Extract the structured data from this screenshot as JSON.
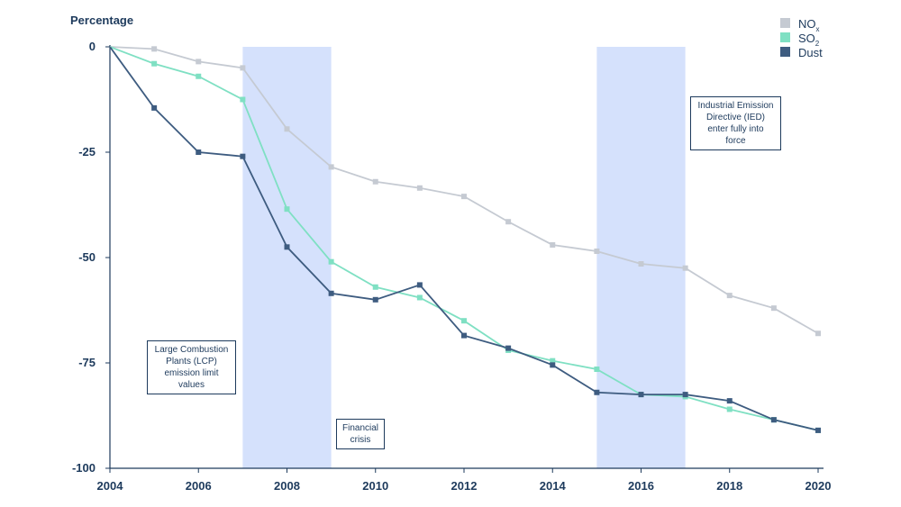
{
  "chart_data": {
    "type": "line",
    "ylabel": "Percentage",
    "x": [
      2004,
      2005,
      2006,
      2007,
      2008,
      2009,
      2010,
      2011,
      2012,
      2013,
      2014,
      2015,
      2016,
      2017,
      2018,
      2019,
      2020
    ],
    "xticks": [
      "2004",
      "2006",
      "2008",
      "2010",
      "2012",
      "2014",
      "2016",
      "2018",
      "2020"
    ],
    "xlim": [
      2004,
      2020
    ],
    "yticks": [
      "0",
      "-25",
      "-50",
      "-75",
      "-100"
    ],
    "ylim": [
      -100,
      0
    ],
    "series": [
      {
        "name": "NO",
        "sub": "x",
        "color": "#c5cad2",
        "values": [
          0,
          -0.5,
          -3.5,
          -5,
          -19.5,
          -28.5,
          -32,
          -33.5,
          -35.5,
          -41.5,
          -47,
          -48.5,
          -51.5,
          -52.5,
          -59,
          -62,
          -68
        ]
      },
      {
        "name": "SO",
        "sub": "2",
        "color": "#7fe0c3",
        "values": [
          0,
          -4,
          -7,
          -12.5,
          -38.5,
          -51,
          -57,
          -59.5,
          -65,
          -72,
          -74.5,
          -76.5,
          -82.5,
          -83,
          -86,
          -88.5,
          -91
        ]
      },
      {
        "name": "Dust",
        "sub": "",
        "color": "#3e5c80",
        "values": [
          0,
          -14.5,
          -25,
          -26,
          -47.5,
          -58.5,
          -60,
          -56.5,
          -68.5,
          -71.5,
          -75.5,
          -82,
          -82.5,
          -82.5,
          -84,
          -88.5,
          -91
        ]
      }
    ],
    "shaded_periods": [
      {
        "label": "Financial crisis",
        "from": 2007,
        "to": 2009,
        "color": "#d5e1fc"
      },
      {
        "label": "IED",
        "from": 2015,
        "to": 2017,
        "color": "#d5e1fc"
      }
    ],
    "annotations": {
      "lcp": [
        "Large Combustion",
        "Plants (LCP)",
        "emission limit",
        "values"
      ],
      "crisis": [
        "Financial",
        "crisis"
      ],
      "ied": [
        "Industrial Emission",
        "Directive (IED)",
        "enter fully into force"
      ]
    }
  }
}
